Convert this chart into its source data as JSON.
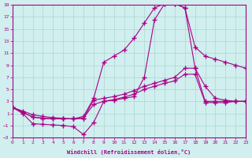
{
  "xlabel": "Windchill (Refroidissement éolien,°C)",
  "xlim": [
    0,
    23
  ],
  "ylim": [
    -3,
    19
  ],
  "xticks": [
    0,
    1,
    2,
    3,
    4,
    5,
    6,
    7,
    8,
    9,
    10,
    11,
    12,
    13,
    14,
    15,
    16,
    17,
    18,
    19,
    20,
    21,
    22,
    23
  ],
  "yticks": [
    -3,
    -1,
    1,
    3,
    5,
    7,
    9,
    11,
    13,
    15,
    17,
    19
  ],
  "background_color": "#d0efee",
  "grid_color": "#a8d8d4",
  "line_color": "#aa0088",
  "curve1": [
    2,
    1.4,
    0.8,
    0.5,
    0.3,
    0.2,
    0.1,
    0.5,
    3.5,
    9.5,
    10.5,
    11.5,
    13.5,
    16.0,
    18.5,
    19.2,
    19.2,
    18.5,
    12.0,
    10.5,
    10.0,
    9.5,
    9.0,
    8.5
  ],
  "curve2": [
    2,
    1.0,
    -0.7,
    -0.8,
    -0.9,
    -1.0,
    -1.2,
    -2.5,
    -0.5,
    3.0,
    3.2,
    3.5,
    3.8,
    7.0,
    16.5,
    19.2,
    19.2,
    18.5,
    8.5,
    5.5,
    3.5,
    3.2,
    3.0,
    3.0
  ],
  "curve3": [
    2,
    1.2,
    0.4,
    0.2,
    0.1,
    0.1,
    0.1,
    0.2,
    3.2,
    3.5,
    3.8,
    4.2,
    4.8,
    5.5,
    6.0,
    6.5,
    7.0,
    8.5,
    8.5,
    3.0,
    3.0,
    3.0,
    3.0,
    3.0
  ],
  "curve4": [
    2,
    1.2,
    0.4,
    0.2,
    0.1,
    0.1,
    0.1,
    0.2,
    2.5,
    3.0,
    3.3,
    3.7,
    4.2,
    5.0,
    5.5,
    6.0,
    6.4,
    7.5,
    7.5,
    2.8,
    2.8,
    2.8,
    3.0,
    3.0
  ]
}
